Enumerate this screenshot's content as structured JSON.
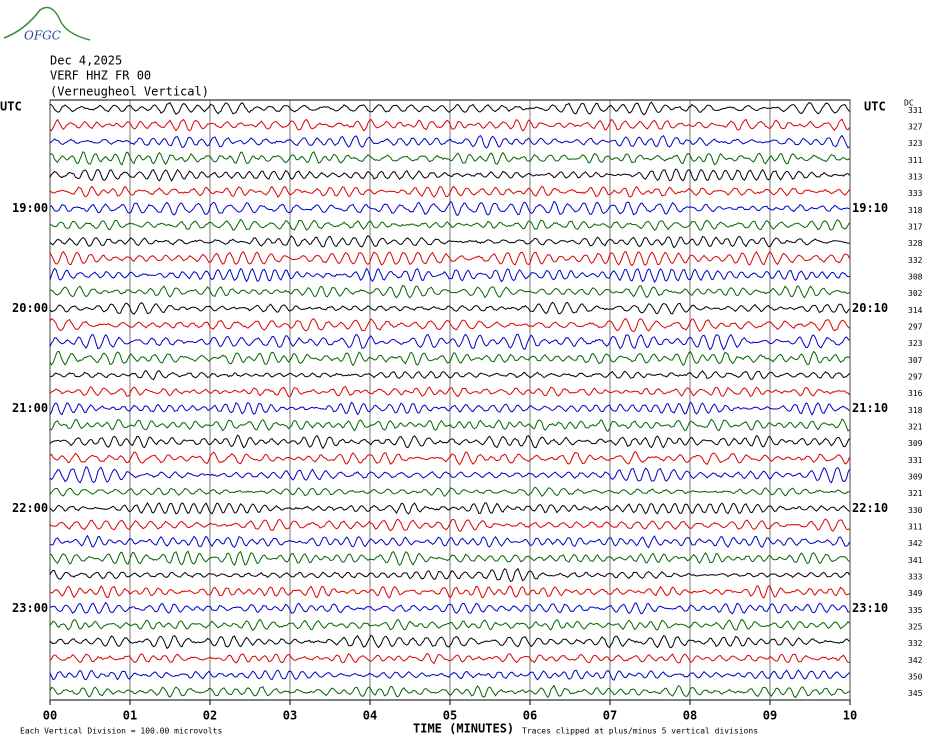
{
  "logo": "OFGC",
  "chart_data": {
    "type": "helicorder",
    "date": "Dec 4,2025",
    "station": "VERF HHZ FR 00",
    "subtitle": "(Verneugheol Vertical)",
    "left_header": "UTC",
    "right_header": "UTC",
    "dc_header": "DC",
    "left_labels": [
      "19:00",
      "20:00",
      "21:00",
      "22:00",
      "23:00"
    ],
    "right_labels": [
      "19:10",
      "20:10",
      "21:10",
      "22:10",
      "23:10"
    ],
    "dc_values": [
      331,
      327,
      323,
      311,
      313,
      333,
      318,
      317,
      328,
      332,
      308,
      302,
      314,
      297,
      323,
      307,
      297,
      316,
      318,
      321,
      309,
      331,
      309,
      321,
      330,
      311,
      342,
      341,
      333,
      349,
      335,
      325,
      332,
      342,
      350,
      345
    ],
    "trace_colors": [
      "#000000",
      "#dd0000",
      "#0000cc",
      "#006600"
    ],
    "xlabel": "TIME (MINUTES)",
    "xlim": [
      0,
      10
    ],
    "xticks": [
      {
        "value": 0,
        "label": "00"
      },
      {
        "value": 1,
        "label": "01"
      },
      {
        "value": 2,
        "label": "02"
      },
      {
        "value": 3,
        "label": "03"
      },
      {
        "value": 4,
        "label": "04"
      },
      {
        "value": 5,
        "label": "05"
      },
      {
        "value": 6,
        "label": "06"
      },
      {
        "value": 7,
        "label": "07"
      },
      {
        "value": 8,
        "label": "08"
      },
      {
        "value": 9,
        "label": "09"
      },
      {
        "value": 10,
        "label": "10"
      }
    ],
    "grid": true,
    "footer_left": "Each Vertical Division =  100.00 microvolts",
    "footer_right": "Traces clipped at plus/minus 5 vertical divisions"
  }
}
